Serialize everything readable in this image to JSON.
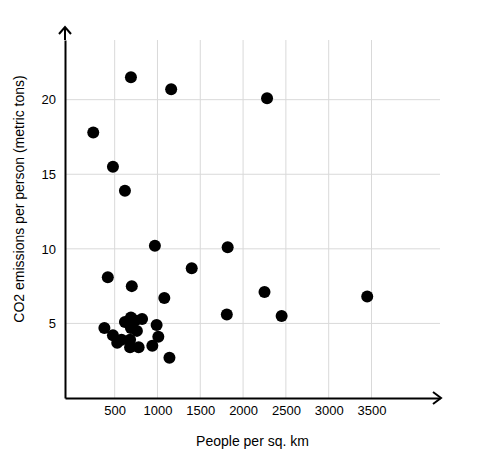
{
  "chart_data": {
    "type": "scatter",
    "x_label": "People per sq. km",
    "y_label": "CO2 emissions per person (metric tons)",
    "x": [
      690,
      1160,
      2280,
      250,
      480,
      620,
      970,
      1820,
      420,
      1400,
      700,
      2250,
      3450,
      1080,
      1810,
      2450,
      380,
      480,
      530,
      580,
      620,
      690,
      740,
      820,
      690,
      680,
      760,
      680,
      780,
      990,
      1010,
      940,
      1140
    ],
    "values": [
      21.5,
      20.7,
      20.1,
      17.8,
      15.5,
      13.9,
      10.2,
      10.1,
      8.1,
      8.7,
      7.5,
      7.1,
      6.8,
      6.7,
      5.6,
      5.5,
      4.7,
      4.2,
      3.7,
      3.9,
      5.1,
      5.4,
      5.2,
      5.3,
      4.7,
      3.9,
      4.5,
      3.4,
      3.4,
      4.9,
      4.1,
      3.5,
      2.7
    ],
    "color": "#000000",
    "xlim": [
      -80,
      4300
    ],
    "ylim": [
      0,
      24
    ],
    "xticks": [
      500,
      1000,
      1500,
      2000,
      2500,
      3000,
      3500
    ],
    "yticks": [
      5,
      10,
      15,
      20
    ],
    "grid": true
  }
}
